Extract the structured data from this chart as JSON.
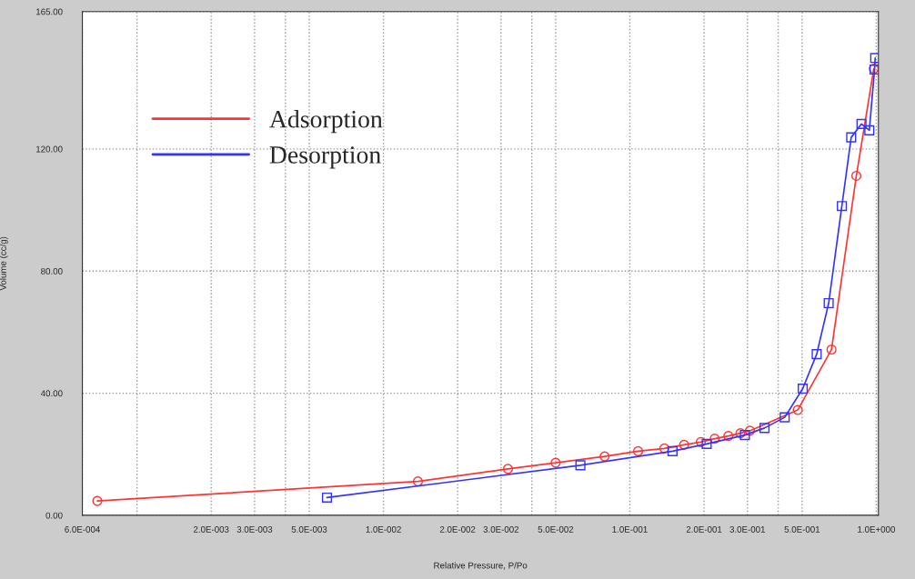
{
  "chart_data": {
    "type": "line",
    "xlabel": "Relative Pressure, P/Po",
    "ylabel": "Volume (cc/g)",
    "log": "x",
    "xlim": [
      0.0006,
      1.02
    ],
    "ylim": [
      0,
      165
    ],
    "xticks": [
      {
        "value": 0.0006,
        "label": "6.0E-004"
      },
      {
        "value": 0.001,
        "label": null
      },
      {
        "value": 0.002,
        "label": "2.0E-003"
      },
      {
        "value": 0.003,
        "label": "3.0E-003"
      },
      {
        "value": 0.004,
        "label": null
      },
      {
        "value": 0.005,
        "label": "5.0E-003"
      },
      {
        "value": 0.01,
        "label": "1.0E-002"
      },
      {
        "value": 0.02,
        "label": "2.0E-002"
      },
      {
        "value": 0.03,
        "label": "3.0E-002"
      },
      {
        "value": 0.04,
        "label": null
      },
      {
        "value": 0.05,
        "label": "5.0E-002"
      },
      {
        "value": 0.1,
        "label": "1.0E-001"
      },
      {
        "value": 0.2,
        "label": "2.0E-001"
      },
      {
        "value": 0.3,
        "label": "3.0E-001"
      },
      {
        "value": 0.4,
        "label": null
      },
      {
        "value": 0.5,
        "label": "5.0E-001"
      },
      {
        "value": 1,
        "label": "1.0E+000"
      }
    ],
    "yticks": [
      {
        "value": 0,
        "label": "0.00"
      },
      {
        "value": 40,
        "label": "40.00"
      },
      {
        "value": 80,
        "label": "80.00"
      },
      {
        "value": 120,
        "label": "120.00"
      },
      {
        "value": 165,
        "label": "165.00"
      }
    ],
    "grid": true,
    "legend": "top left",
    "line_style": "solid",
    "series": [
      {
        "name": "Adsorption",
        "color": "#ff3333",
        "marker": "circle",
        "x": [
          0.00069,
          0.0138,
          0.032,
          0.05,
          0.079,
          0.108,
          0.138,
          0.166,
          0.194,
          0.221,
          0.251,
          0.281,
          0.307,
          0.48,
          0.658,
          0.83,
          0.977
        ],
        "values": [
          4.7,
          11.1,
          15.2,
          17.2,
          19.3,
          21.0,
          21.9,
          23.1,
          24.0,
          25.1,
          26.0,
          26.9,
          27.7,
          34.5,
          54.3,
          111.2,
          146.3
        ]
      },
      {
        "name": "Desorption",
        "color": "#3333ff",
        "marker": "square",
        "x": [
          0.0059,
          0.063,
          0.149,
          0.205,
          0.293,
          0.352,
          0.425,
          0.503,
          0.573,
          0.641,
          0.725,
          0.791,
          0.871,
          0.937,
          0.984,
          0.99
        ],
        "values": [
          5.8,
          16.4,
          21.0,
          23.4,
          26.3,
          28.6,
          32.1,
          41.5,
          52.8,
          69.5,
          101.3,
          123.8,
          128.2,
          126.1,
          146.0,
          149.8
        ]
      }
    ]
  }
}
